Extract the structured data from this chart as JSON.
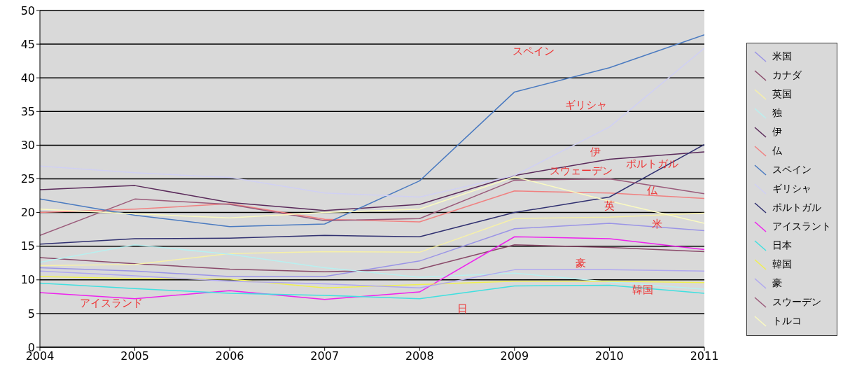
{
  "chart_data": {
    "type": "line",
    "x": [
      2004,
      2005,
      2006,
      2007,
      2008,
      2009,
      2010,
      2011
    ],
    "xlim": [
      2004,
      2011
    ],
    "xticks": [
      2004,
      2005,
      2006,
      2007,
      2008,
      2009,
      2010,
      2011
    ],
    "ylim": [
      0,
      50
    ],
    "yticks": [
      0,
      5,
      10,
      15,
      20,
      25,
      30,
      35,
      40,
      45,
      50
    ],
    "grid": "y",
    "legend": "right",
    "marker": "none",
    "series": [
      {
        "name": "米国",
        "color": "#9a94e6",
        "values": [
          11.8,
          11.3,
          10.5,
          10.5,
          12.8,
          17.6,
          18.4,
          17.3
        ]
      },
      {
        "name": "カナダ",
        "color": "#8a4a6a",
        "values": [
          13.3,
          12.4,
          11.6,
          11.2,
          11.6,
          15.2,
          14.8,
          14.2
        ]
      },
      {
        "name": "英国",
        "color": "#f6f0a8",
        "values": [
          12.1,
          12.3,
          13.9,
          14.2,
          14.1,
          19.1,
          19.3,
          19.9
        ]
      },
      {
        "name": "独",
        "color": "#b8f0f0",
        "values": [
          12.6,
          15.2,
          13.8,
          11.8,
          10.4,
          11.0,
          9.7,
          8.6
        ]
      },
      {
        "name": "伊",
        "color": "#5a2a5a",
        "values": [
          23.4,
          24.0,
          21.5,
          20.3,
          21.2,
          25.5,
          27.9,
          29.0
        ]
      },
      {
        "name": "仏",
        "color": "#f08080",
        "values": [
          20.0,
          20.5,
          21.3,
          19.0,
          18.6,
          23.2,
          22.9,
          22.1
        ]
      },
      {
        "name": "スペイン",
        "color": "#4a7ac0",
        "values": [
          22.0,
          19.6,
          17.9,
          18.3,
          24.7,
          37.9,
          41.5,
          46.4
        ]
      },
      {
        "name": "ギリシャ",
        "color": "#d0d0f4",
        "values": [
          26.9,
          25.9,
          25.2,
          22.9,
          22.3,
          25.5,
          32.7,
          44.4
        ]
      },
      {
        "name": "ポルトガル",
        "color": "#303070",
        "values": [
          15.3,
          16.1,
          16.2,
          16.6,
          16.4,
          20.0,
          22.3,
          30.1
        ]
      },
      {
        "name": "アイスラント",
        "color": "#ee22ee",
        "values": [
          8.1,
          7.2,
          8.4,
          7.1,
          8.2,
          16.4,
          16.1,
          14.5
        ]
      },
      {
        "name": "日本",
        "color": "#40e0e0",
        "values": [
          9.5,
          8.7,
          8.0,
          7.7,
          7.2,
          9.1,
          9.2,
          8.0
        ]
      },
      {
        "name": "韓国",
        "color": "#f0f050",
        "values": [
          10.5,
          10.2,
          10.1,
          8.8,
          9.3,
          9.8,
          9.8,
          9.6
        ]
      },
      {
        "name": "豪",
        "color": "#b0a8f0",
        "values": [
          11.3,
          10.6,
          9.8,
          9.4,
          8.8,
          11.5,
          11.5,
          11.3
        ]
      },
      {
        "name": "スウーデン",
        "color": "#9a5a7a",
        "values": [
          16.6,
          22.0,
          21.2,
          18.8,
          19.1,
          24.8,
          25.0,
          22.8
        ]
      },
      {
        "name": "トルコ",
        "color": "#fafac0",
        "values": [
          20.5,
          19.8,
          19.2,
          20.0,
          20.5,
          25.3,
          21.7,
          18.4
        ]
      }
    ],
    "annotations": [
      "スペイン",
      "ギリシャ",
      "伊",
      "ポルトガル",
      "スウェーデン",
      "仏",
      "英",
      "米",
      "豪",
      "韓国",
      "アイスランド",
      "日"
    ]
  }
}
